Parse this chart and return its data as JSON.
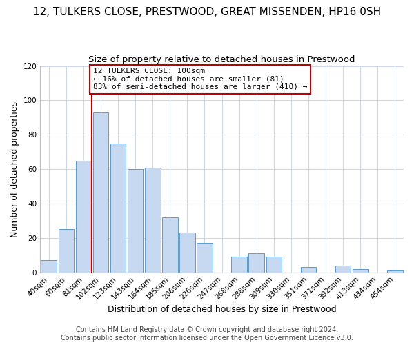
{
  "title": "12, TULKERS CLOSE, PRESTWOOD, GREAT MISSENDEN, HP16 0SH",
  "subtitle": "Size of property relative to detached houses in Prestwood",
  "xlabel": "Distribution of detached houses by size in Prestwood",
  "ylabel": "Number of detached properties",
  "bin_labels": [
    "40sqm",
    "60sqm",
    "81sqm",
    "102sqm",
    "123sqm",
    "143sqm",
    "164sqm",
    "185sqm",
    "206sqm",
    "226sqm",
    "247sqm",
    "268sqm",
    "288sqm",
    "309sqm",
    "330sqm",
    "351sqm",
    "371sqm",
    "392sqm",
    "413sqm",
    "434sqm",
    "454sqm"
  ],
  "bar_heights": [
    7,
    25,
    65,
    93,
    75,
    60,
    61,
    32,
    23,
    17,
    0,
    9,
    11,
    9,
    0,
    3,
    0,
    4,
    2,
    0,
    1
  ],
  "bar_color": "#c6d9f1",
  "bar_edge_color": "#5b9bd5",
  "vline_color": "#c00000",
  "annotation_line1": "12 TULKERS CLOSE: 100sqm",
  "annotation_line2": "← 16% of detached houses are smaller (81)",
  "annotation_line3": "83% of semi-detached houses are larger (410) →",
  "annotation_box_color": "#ffffff",
  "annotation_box_edge": "#c00000",
  "ylim": [
    0,
    120
  ],
  "yticks": [
    0,
    20,
    40,
    60,
    80,
    100,
    120
  ],
  "footer_line1": "Contains HM Land Registry data © Crown copyright and database right 2024.",
  "footer_line2": "Contains public sector information licensed under the Open Government Licence v3.0.",
  "background_color": "#ffffff",
  "grid_color": "#d0d8e8",
  "title_fontsize": 11,
  "subtitle_fontsize": 9.5,
  "axis_label_fontsize": 9,
  "tick_fontsize": 7.5,
  "annotation_fontsize": 8,
  "footer_fontsize": 7
}
